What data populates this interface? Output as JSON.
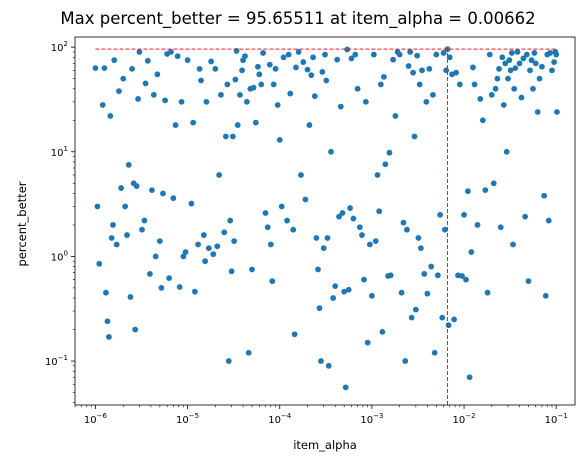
{
  "chart_data": {
    "type": "scatter",
    "title": "Max percent_better = 95.65511 at item_alpha = 0.00662",
    "xlabel": "item_alpha",
    "ylabel": "percent_better",
    "xscale": "log",
    "yscale": "log",
    "xlim": [
      6e-07,
      0.16
    ],
    "ylim": [
      0.038,
      125
    ],
    "x_ticks": [
      {
        "value": 1e-06,
        "base": "10",
        "exp": "−6"
      },
      {
        "value": 1e-05,
        "base": "10",
        "exp": "−5"
      },
      {
        "value": 0.0001,
        "base": "10",
        "exp": "−4"
      },
      {
        "value": 0.001,
        "base": "10",
        "exp": "−3"
      },
      {
        "value": 0.01,
        "base": "10",
        "exp": "−2"
      },
      {
        "value": 0.1,
        "base": "10",
        "exp": "−1"
      }
    ],
    "y_ticks": [
      {
        "value": 0.1,
        "base": "10",
        "exp": "−1"
      },
      {
        "value": 1,
        "base": "10",
        "exp": "0"
      },
      {
        "value": 10,
        "base": "10",
        "exp": "1"
      },
      {
        "value": 100,
        "base": "10",
        "exp": "2"
      }
    ],
    "max_point": {
      "x": 0.00662,
      "y": 95.65511
    },
    "colors": {
      "points": "#1f77b4",
      "reference_lines": "#e8191c"
    },
    "grid": false,
    "legend": false,
    "points": [
      [
        1e-06,
        63
      ],
      [
        1.05e-06,
        3.0
      ],
      [
        1.1e-06,
        0.85
      ],
      [
        1.2e-06,
        28
      ],
      [
        1.25e-06,
        63
      ],
      [
        1.3e-06,
        0.45
      ],
      [
        1.35e-06,
        0.24
      ],
      [
        1.4e-06,
        0.17
      ],
      [
        1.45e-06,
        22
      ],
      [
        1.5e-06,
        1.5
      ],
      [
        1.55e-06,
        2.0
      ],
      [
        1.6e-06,
        75
      ],
      [
        1.7e-06,
        1.3
      ],
      [
        1.8e-06,
        38
      ],
      [
        1.9e-06,
        4.5
      ],
      [
        2e-06,
        50
      ],
      [
        2.1e-06,
        3.0
      ],
      [
        2.2e-06,
        1.6
      ],
      [
        2.3e-06,
        7.5
      ],
      [
        2.4e-06,
        0.41
      ],
      [
        2.5e-06,
        62
      ],
      [
        2.6e-06,
        5.0
      ],
      [
        2.7e-06,
        0.2
      ],
      [
        2.8e-06,
        4.7
      ],
      [
        2.9e-06,
        32
      ],
      [
        3e-06,
        90
      ],
      [
        3.2e-06,
        1.8
      ],
      [
        3.4e-06,
        2.2
      ],
      [
        3.5e-06,
        45
      ],
      [
        3.7e-06,
        74
      ],
      [
        3.9e-06,
        0.68
      ],
      [
        4.1e-06,
        4.3
      ],
      [
        4.3e-06,
        35
      ],
      [
        4.5e-06,
        1.0
      ],
      [
        4.7e-06,
        55
      ],
      [
        5e-06,
        1.4
      ],
      [
        5.2e-06,
        0.5
      ],
      [
        5.4e-06,
        4.0
      ],
      [
        5.7e-06,
        31
      ],
      [
        6e-06,
        86
      ],
      [
        6.3e-06,
        0.62
      ],
      [
        6.6e-06,
        90
      ],
      [
        7e-06,
        3.6
      ],
      [
        7.4e-06,
        18
      ],
      [
        7.8e-06,
        82
      ],
      [
        8.2e-06,
        0.51
      ],
      [
        8.6e-06,
        30
      ],
      [
        9e-06,
        1.0
      ],
      [
        9.5e-06,
        1.1
      ],
      [
        1e-05,
        75
      ],
      [
        1.1e-05,
        3.2
      ],
      [
        1.15e-05,
        19
      ],
      [
        1.2e-05,
        0.46
      ],
      [
        1.3e-05,
        1.3
      ],
      [
        1.35e-05,
        62
      ],
      [
        1.4e-05,
        48
      ],
      [
        1.5e-05,
        1.6
      ],
      [
        1.55e-05,
        0.9
      ],
      [
        1.6e-05,
        30
      ],
      [
        1.7e-05,
        1.2
      ],
      [
        1.8e-05,
        73
      ],
      [
        1.9e-05,
        1.05
      ],
      [
        2e-05,
        62
      ],
      [
        2.1e-05,
        1.25
      ],
      [
        2.2e-05,
        6.0
      ],
      [
        2.3e-05,
        35
      ],
      [
        2.5e-05,
        1.7
      ],
      [
        2.6e-05,
        14
      ],
      [
        2.7e-05,
        44
      ],
      [
        2.8e-05,
        0.1
      ],
      [
        2.9e-05,
        2.2
      ],
      [
        3e-05,
        0.72
      ],
      [
        3.1e-05,
        14
      ],
      [
        3.2e-05,
        1.4
      ],
      [
        3.3e-05,
        49
      ],
      [
        3.4e-05,
        92
      ],
      [
        3.5e-05,
        18
      ],
      [
        3.7e-05,
        35
      ],
      [
        3.9e-05,
        60
      ],
      [
        4e-05,
        75
      ],
      [
        4.2e-05,
        82
      ],
      [
        4.4e-05,
        30
      ],
      [
        4.6e-05,
        0.12
      ],
      [
        4.8e-05,
        40
      ],
      [
        5e-05,
        0.75
      ],
      [
        5.2e-05,
        41
      ],
      [
        5.5e-05,
        19
      ],
      [
        5.8e-05,
        65
      ],
      [
        6e-05,
        55
      ],
      [
        6.3e-05,
        44
      ],
      [
        6.6e-05,
        88
      ],
      [
        7e-05,
        2.6
      ],
      [
        7.4e-05,
        1.9
      ],
      [
        7.8e-05,
        68
      ],
      [
        8e-05,
        1.3
      ],
      [
        8.3e-05,
        0.58
      ],
      [
        8.6e-05,
        44
      ],
      [
        9e-05,
        62
      ],
      [
        9.5e-05,
        28
      ],
      [
        0.0001,
        13
      ],
      [
        0.000105,
        3.0
      ],
      [
        0.00011,
        80
      ],
      [
        0.00012,
        2.2
      ],
      [
        0.000125,
        85
      ],
      [
        0.00013,
        36
      ],
      [
        0.00014,
        1.8
      ],
      [
        0.000145,
        0.18
      ],
      [
        0.00015,
        64
      ],
      [
        0.00016,
        90
      ],
      [
        0.00017,
        6.0
      ],
      [
        0.00018,
        72
      ],
      [
        0.00019,
        3.5
      ],
      [
        0.0002,
        61
      ],
      [
        0.00021,
        18
      ],
      [
        0.00022,
        54
      ],
      [
        0.00023,
        80
      ],
      [
        0.00024,
        34
      ],
      [
        0.00025,
        1.5
      ],
      [
        0.00026,
        0.75
      ],
      [
        0.00027,
        0.32
      ],
      [
        0.00028,
        0.1
      ],
      [
        0.00029,
        58
      ],
      [
        0.0003,
        1.2
      ],
      [
        0.00031,
        85
      ],
      [
        0.00032,
        48
      ],
      [
        0.00033,
        1.5
      ],
      [
        0.00034,
        0.09
      ],
      [
        0.00036,
        10
      ],
      [
        0.00038,
        0.4
      ],
      [
        0.0004,
        0.52
      ],
      [
        0.00042,
        76
      ],
      [
        0.00044,
        2.4
      ],
      [
        0.00046,
        27
      ],
      [
        0.00048,
        2.6
      ],
      [
        0.0005,
        0.46
      ],
      [
        0.00052,
        0.056
      ],
      [
        0.00054,
        95
      ],
      [
        0.00056,
        0.48
      ],
      [
        0.00058,
        2.9
      ],
      [
        0.0006,
        78
      ],
      [
        0.00063,
        2.3
      ],
      [
        0.00066,
        85
      ],
      [
        0.0007,
        40
      ],
      [
        0.00074,
        1.9
      ],
      [
        0.00078,
        1.6
      ],
      [
        0.00082,
        0.6
      ],
      [
        0.00086,
        30
      ],
      [
        0.0009,
        0.15
      ],
      [
        0.00095,
        1.3
      ],
      [
        0.001,
        0.42
      ],
      [
        0.00105,
        85
      ],
      [
        0.0011,
        1.4
      ],
      [
        0.00115,
        6.0
      ],
      [
        0.0012,
        2.7
      ],
      [
        0.00125,
        44
      ],
      [
        0.0013,
        0.19
      ],
      [
        0.00135,
        52
      ],
      [
        0.0014,
        7.6
      ],
      [
        0.0015,
        0.65
      ],
      [
        0.00155,
        9.8
      ],
      [
        0.0016,
        0.66
      ],
      [
        0.0017,
        76
      ],
      [
        0.0018,
        22
      ],
      [
        0.0019,
        90
      ],
      [
        0.002,
        85
      ],
      [
        0.0021,
        0.45
      ],
      [
        0.0022,
        2.1
      ],
      [
        0.0023,
        0.1
      ],
      [
        0.0024,
        1.8
      ],
      [
        0.0025,
        66
      ],
      [
        0.0026,
        90
      ],
      [
        0.0027,
        0.26
      ],
      [
        0.0028,
        57
      ],
      [
        0.0029,
        14
      ],
      [
        0.003,
        0.31
      ],
      [
        0.0031,
        83
      ],
      [
        0.0032,
        1.5
      ],
      [
        0.0033,
        44
      ],
      [
        0.0034,
        1.2
      ],
      [
        0.0035,
        60
      ],
      [
        0.0037,
        0.68
      ],
      [
        0.0039,
        30
      ],
      [
        0.004,
        0.44
      ],
      [
        0.0042,
        62
      ],
      [
        0.0044,
        0.8
      ],
      [
        0.0046,
        35
      ],
      [
        0.0048,
        0.12
      ],
      [
        0.005,
        85
      ],
      [
        0.0052,
        0.66
      ],
      [
        0.0055,
        2.5
      ],
      [
        0.0058,
        0.26
      ],
      [
        0.006,
        88
      ],
      [
        0.0062,
        1.8
      ],
      [
        0.0064,
        60
      ],
      [
        0.00662,
        95.65511
      ],
      [
        0.0068,
        0.22
      ],
      [
        0.007,
        80
      ],
      [
        0.0074,
        55
      ],
      [
        0.0078,
        0.25
      ],
      [
        0.0082,
        57
      ],
      [
        0.0086,
        0.66
      ],
      [
        0.009,
        44
      ],
      [
        0.0095,
        0.65
      ],
      [
        0.01,
        2.5
      ],
      [
        0.0105,
        0.6
      ],
      [
        0.011,
        4.2
      ],
      [
        0.0115,
        0.07
      ],
      [
        0.012,
        1.1
      ],
      [
        0.0125,
        64
      ],
      [
        0.013,
        44
      ],
      [
        0.014,
        2.0
      ],
      [
        0.015,
        32
      ],
      [
        0.016,
        20
      ],
      [
        0.017,
        4.3
      ],
      [
        0.018,
        0.45
      ],
      [
        0.019,
        85
      ],
      [
        0.02,
        35
      ],
      [
        0.021,
        5.0
      ],
      [
        0.022,
        40
      ],
      [
        0.023,
        50
      ],
      [
        0.024,
        62
      ],
      [
        0.025,
        1.9
      ],
      [
        0.026,
        80
      ],
      [
        0.027,
        28
      ],
      [
        0.028,
        70
      ],
      [
        0.029,
        10
      ],
      [
        0.03,
        50
      ],
      [
        0.031,
        75
      ],
      [
        0.032,
        60
      ],
      [
        0.033,
        88
      ],
      [
        0.034,
        1.3
      ],
      [
        0.035,
        40
      ],
      [
        0.036,
        63
      ],
      [
        0.038,
        90
      ],
      [
        0.04,
        70
      ],
      [
        0.042,
        33
      ],
      [
        0.044,
        78
      ],
      [
        0.046,
        2.4
      ],
      [
        0.048,
        85
      ],
      [
        0.05,
        0.58
      ],
      [
        0.052,
        60
      ],
      [
        0.054,
        75
      ],
      [
        0.056,
        40
      ],
      [
        0.058,
        88
      ],
      [
        0.06,
        70
      ],
      [
        0.063,
        24
      ],
      [
        0.066,
        50
      ],
      [
        0.07,
        65
      ],
      [
        0.074,
        3.8
      ],
      [
        0.077,
        0.42
      ],
      [
        0.08,
        85
      ],
      [
        0.083,
        2.2
      ],
      [
        0.086,
        88
      ],
      [
        0.09,
        60
      ],
      [
        0.095,
        72
      ],
      [
        0.1,
        85
      ],
      [
        0.102,
        24
      ],
      [
        0.098,
        90
      ]
    ]
  }
}
